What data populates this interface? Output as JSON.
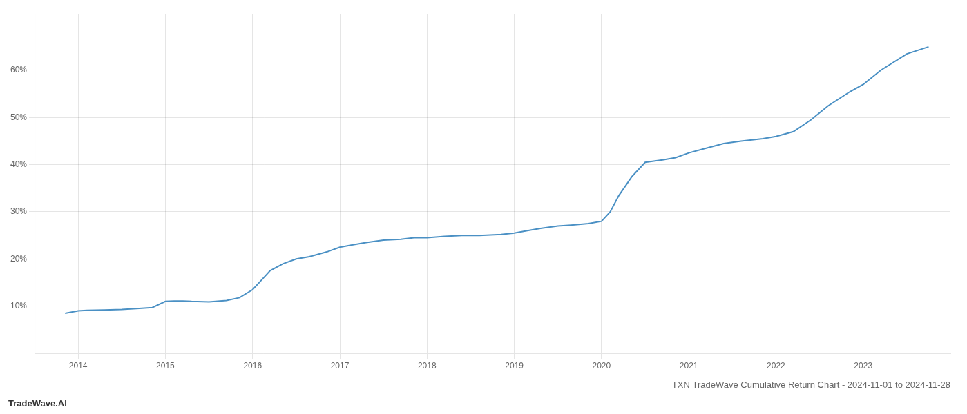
{
  "chart_data": {
    "type": "line",
    "title": "TXN TradeWave Cumulative Return Chart - 2024-11-01 to 2024-11-28",
    "annotations": [
      "TradeWave.AI"
    ],
    "color": "#4a90c4",
    "x": [
      2013.85,
      2014.0,
      2014.1,
      2014.3,
      2014.5,
      2014.7,
      2014.85,
      2015.0,
      2015.1,
      2015.2,
      2015.3,
      2015.5,
      2015.7,
      2015.85,
      2016.0,
      2016.1,
      2016.2,
      2016.35,
      2016.5,
      2016.65,
      2016.85,
      2017.0,
      2017.15,
      2017.3,
      2017.5,
      2017.7,
      2017.85,
      2018.0,
      2018.2,
      2018.4,
      2018.6,
      2018.85,
      2019.0,
      2019.15,
      2019.3,
      2019.5,
      2019.65,
      2019.85,
      2020.0,
      2020.1,
      2020.2,
      2020.35,
      2020.5,
      2020.7,
      2020.85,
      2021.0,
      2021.2,
      2021.4,
      2021.6,
      2021.85,
      2022.0,
      2022.2,
      2022.4,
      2022.6,
      2022.85,
      2023.0,
      2023.2,
      2023.5,
      2023.75
    ],
    "values": [
      8.5,
      9.0,
      9.1,
      9.2,
      9.3,
      9.5,
      9.7,
      11.0,
      11.1,
      11.1,
      11.0,
      10.9,
      11.2,
      11.8,
      13.5,
      15.5,
      17.5,
      19.0,
      20.0,
      20.5,
      21.5,
      22.5,
      23.0,
      23.5,
      24.0,
      24.2,
      24.5,
      24.5,
      24.8,
      25.0,
      25.0,
      25.2,
      25.5,
      26.0,
      26.5,
      27.0,
      27.2,
      27.5,
      28.0,
      30.0,
      33.5,
      37.5,
      40.5,
      41.0,
      41.5,
      42.5,
      43.5,
      44.5,
      45.0,
      45.5,
      46.0,
      47.0,
      49.5,
      52.5,
      55.5,
      57.0,
      60.0,
      63.5,
      65.0
    ],
    "xlim": [
      2013.5,
      2024.0
    ],
    "ylim": [
      0,
      72
    ],
    "xticks": [
      2014,
      2015,
      2016,
      2017,
      2018,
      2019,
      2020,
      2021,
      2022,
      2023
    ],
    "yticks": [
      {
        "value": 10,
        "label": "10%"
      },
      {
        "value": 20,
        "label": "20%"
      },
      {
        "value": 30,
        "label": "30%"
      },
      {
        "value": 40,
        "label": "40%"
      },
      {
        "value": 50,
        "label": "50%"
      },
      {
        "value": 60,
        "label": "60%"
      }
    ],
    "grid": true
  }
}
